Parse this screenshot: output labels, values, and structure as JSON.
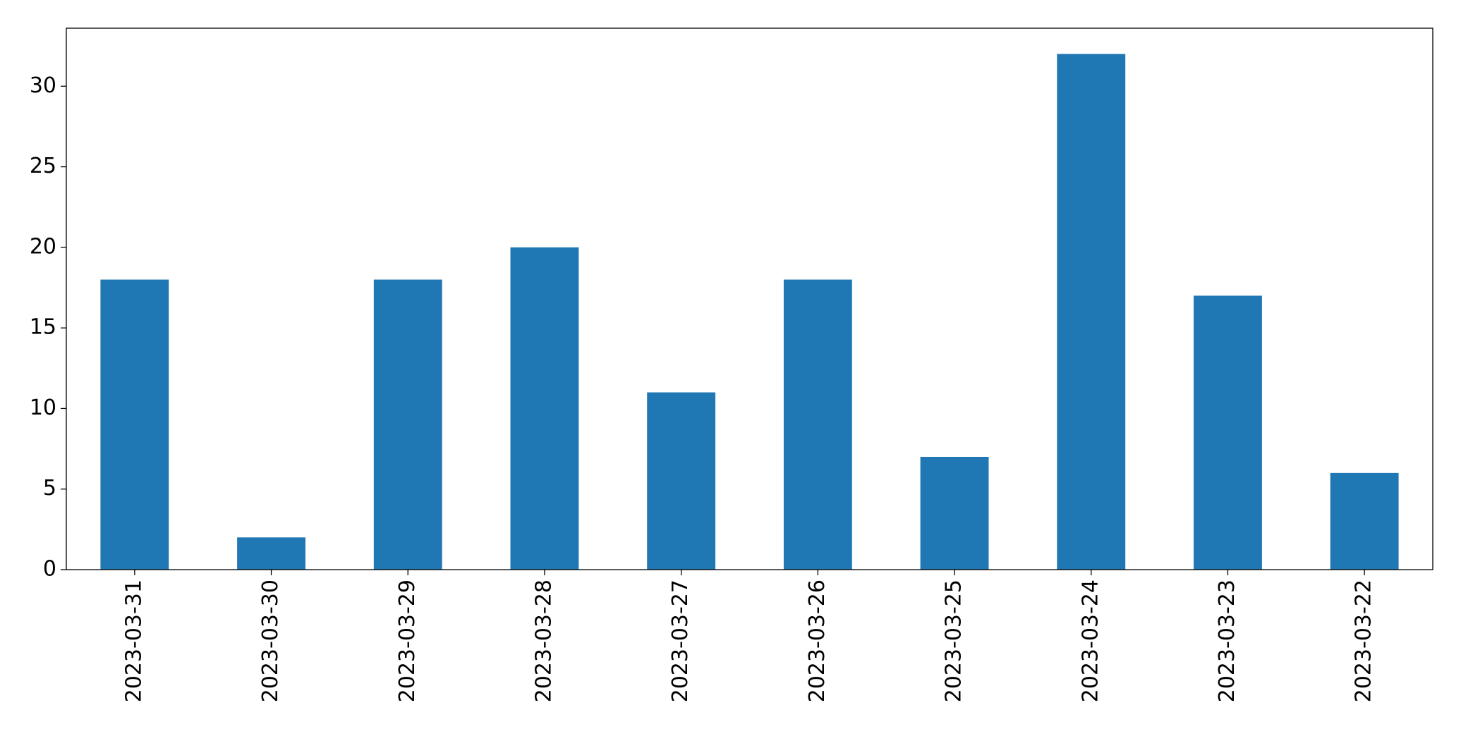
{
  "chart_data": {
    "type": "bar",
    "categories": [
      "2023-03-31",
      "2023-03-30",
      "2023-03-29",
      "2023-03-28",
      "2023-03-27",
      "2023-03-26",
      "2023-03-25",
      "2023-03-24",
      "2023-03-23",
      "2023-03-22"
    ],
    "values": [
      18,
      2,
      18,
      20,
      11,
      18,
      7,
      32,
      17,
      6
    ],
    "color": "#1f77b4",
    "ylim": [
      0,
      33.6
    ],
    "yticks": [
      0,
      5,
      10,
      15,
      20,
      25,
      30
    ],
    "grid": false
  }
}
